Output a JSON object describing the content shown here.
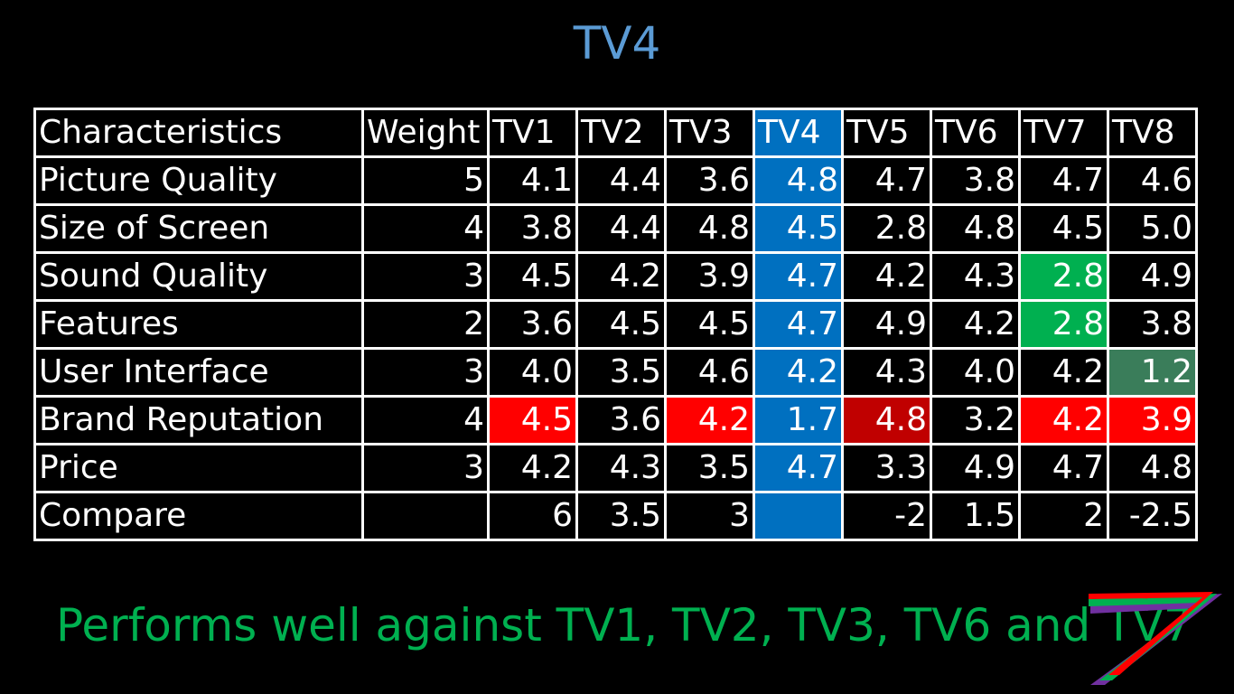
{
  "title": "TV4",
  "table": {
    "headers": [
      "Characteristics",
      "Weight",
      "TV1",
      "TV2",
      "TV3",
      "TV4",
      "TV5",
      "TV6",
      "TV7",
      "TV8"
    ],
    "rows": [
      {
        "label": "Picture Quality",
        "weight": "5",
        "cells": [
          {
            "v": "4.1",
            "color": "green"
          },
          {
            "v": "4.4",
            "color": "yellow"
          },
          {
            "v": "3.6",
            "color": "green"
          },
          {
            "v": "4.8",
            "color": "white",
            "bg": "blue"
          },
          {
            "v": "4.7",
            "color": "yellow"
          },
          {
            "v": "3.8",
            "color": "green"
          },
          {
            "v": "4.7",
            "color": "yellow"
          },
          {
            "v": "4.6",
            "color": "yellow"
          }
        ]
      },
      {
        "label": "Size of Screen",
        "weight": "4",
        "cells": [
          {
            "v": "3.8",
            "color": "green"
          },
          {
            "v": "4.4",
            "color": "yellow"
          },
          {
            "v": "4.8",
            "color": "yellow"
          },
          {
            "v": "4.5",
            "color": "white",
            "bg": "blue"
          },
          {
            "v": "2.8",
            "color": "green"
          },
          {
            "v": "4.8",
            "color": "yellow"
          },
          {
            "v": "4.5",
            "color": "yellow"
          },
          {
            "v": "5.0",
            "color": "red"
          }
        ]
      },
      {
        "label": "Sound Quality",
        "weight": "3",
        "cells": [
          {
            "v": "4.5",
            "color": "yellow"
          },
          {
            "v": "4.2",
            "color": "green"
          },
          {
            "v": "3.9",
            "color": "green"
          },
          {
            "v": "4.7",
            "color": "white",
            "bg": "blue"
          },
          {
            "v": "4.2",
            "color": "green"
          },
          {
            "v": "4.3",
            "color": "yellow"
          },
          {
            "v": "2.8",
            "color": "white",
            "bg": "green"
          },
          {
            "v": "4.9",
            "color": "yellow"
          }
        ]
      },
      {
        "label": "Features",
        "weight": "2",
        "cells": [
          {
            "v": "3.6",
            "color": "green"
          },
          {
            "v": "4.5",
            "color": "yellow"
          },
          {
            "v": "4.5",
            "color": "yellow"
          },
          {
            "v": "4.7",
            "color": "white",
            "bg": "blue"
          },
          {
            "v": "4.9",
            "color": "yellow"
          },
          {
            "v": "4.2",
            "color": "green"
          },
          {
            "v": "2.8",
            "color": "white",
            "bg": "green"
          },
          {
            "v": "3.8",
            "color": "green"
          }
        ]
      },
      {
        "label": "User Interface",
        "weight": "3",
        "cells": [
          {
            "v": "4.0",
            "color": "yellow"
          },
          {
            "v": "3.5",
            "color": "green"
          },
          {
            "v": "4.6",
            "color": "yellow"
          },
          {
            "v": "4.2",
            "color": "white",
            "bg": "blue"
          },
          {
            "v": "4.3",
            "color": "yellow"
          },
          {
            "v": "4.0",
            "color": "yellow"
          },
          {
            "v": "4.2",
            "color": "yellow"
          },
          {
            "v": "1.2",
            "color": "white",
            "bg": "teal"
          }
        ]
      },
      {
        "label": "Brand Reputation",
        "weight": "4",
        "cells": [
          {
            "v": "4.5",
            "color": "white",
            "bg": "red"
          },
          {
            "v": "3.6",
            "color": "red"
          },
          {
            "v": "4.2",
            "color": "white",
            "bg": "red"
          },
          {
            "v": "1.7",
            "color": "white",
            "bg": "blue"
          },
          {
            "v": "4.8",
            "color": "white",
            "bg": "darkred"
          },
          {
            "v": "3.2",
            "color": "red"
          },
          {
            "v": "4.2",
            "color": "white",
            "bg": "red"
          },
          {
            "v": "3.9",
            "color": "white",
            "bg": "red"
          }
        ]
      },
      {
        "label": "Price",
        "weight": "3",
        "cells": [
          {
            "v": "4.2",
            "color": "green"
          },
          {
            "v": "4.3",
            "color": "lightgreen"
          },
          {
            "v": "3.5",
            "color": "green"
          },
          {
            "v": "4.7",
            "color": "white",
            "bg": "blue"
          },
          {
            "v": "3.3",
            "color": "green"
          },
          {
            "v": "4.9",
            "color": "orange"
          },
          {
            "v": "4.7",
            "color": "yellow"
          },
          {
            "v": "4.8",
            "color": "orange"
          }
        ]
      },
      {
        "label": "Compare",
        "weight": "",
        "cells": [
          {
            "v": "6",
            "color": "white"
          },
          {
            "v": "3.5",
            "color": "white"
          },
          {
            "v": "3",
            "color": "white"
          },
          {
            "v": "",
            "color": "white",
            "bg": "blue"
          },
          {
            "v": "-2",
            "color": "white"
          },
          {
            "v": "1.5",
            "color": "white"
          },
          {
            "v": "2",
            "color": "white"
          },
          {
            "v": "-2.5",
            "color": "white"
          }
        ]
      }
    ]
  },
  "colors": {
    "title": "#5b9bd5",
    "footer": "#00b050",
    "highlight_column": "#0070c0"
  },
  "footer_text": "Performs well against TV1, TV2, TV3, TV6 and TV7",
  "logo_icon": "stacked-chevron-logo-icon"
}
